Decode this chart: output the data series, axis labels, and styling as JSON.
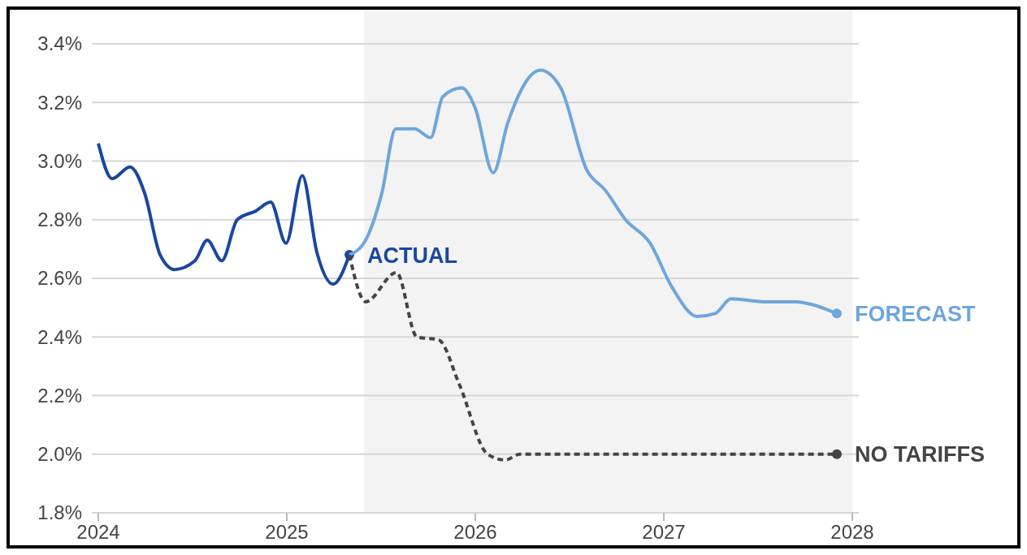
{
  "chart_data": {
    "type": "line",
    "xlim": [
      2024,
      2028
    ],
    "xticks": [
      2024,
      2025,
      2026,
      2027,
      2028
    ],
    "ylim": [
      1.8,
      3.4
    ],
    "yticks": [
      {
        "value": 1.8,
        "label": "1.8%"
      },
      {
        "value": 2.0,
        "label": "2.0%"
      },
      {
        "value": 2.2,
        "label": "2.2%"
      },
      {
        "value": 2.4,
        "label": "2.4%"
      },
      {
        "value": 2.6,
        "label": "2.6%"
      },
      {
        "value": 2.8,
        "label": "2.8%"
      },
      {
        "value": 3.0,
        "label": "3.0%"
      },
      {
        "value": 3.2,
        "label": "3.2%"
      },
      {
        "value": 3.4,
        "label": "3.4%"
      }
    ],
    "grid": "y",
    "marker": "none",
    "bands": [
      {
        "axis": "x",
        "from": 2025.41,
        "to": 2028,
        "color": "#f3f3f3"
      }
    ],
    "series": [
      {
        "name": "ACTUAL",
        "color": "#1a47a0",
        "line_style": "solid",
        "x": [
          2024.0,
          2024.073,
          2024.168,
          2024.246,
          2024.328,
          2024.405,
          2024.513,
          2024.578,
          2024.655,
          2024.737,
          2024.836,
          2024.914,
          2024.996,
          2025.082,
          2025.159,
          2025.246,
          2025.332
        ],
        "values": [
          3.06,
          2.94,
          2.98,
          2.89,
          2.68,
          2.63,
          2.66,
          2.73,
          2.66,
          2.8,
          2.83,
          2.86,
          2.72,
          2.95,
          2.69,
          2.58,
          2.68
        ]
      },
      {
        "name": "FORECAST",
        "color": "#6ea6dc",
        "line_style": "solid",
        "x": [
          2025.332,
          2025.418,
          2025.504,
          2025.578,
          2025.677,
          2025.763,
          2025.828,
          2025.927,
          2026.0,
          2026.095,
          2026.172,
          2026.345,
          2026.453,
          2026.591,
          2026.69,
          2026.797,
          2026.927,
          2027.043,
          2027.177,
          2027.272,
          2027.358,
          2027.53,
          2027.703,
          2027.789,
          2027.918
        ],
        "values": [
          2.68,
          2.73,
          2.89,
          3.11,
          3.11,
          3.08,
          3.22,
          3.25,
          3.18,
          2.96,
          3.13,
          3.31,
          3.25,
          2.97,
          2.9,
          2.8,
          2.72,
          2.57,
          2.47,
          2.48,
          2.53,
          2.52,
          2.52,
          2.51,
          2.48
        ]
      },
      {
        "name": "NO TARIFFS",
        "color": "#444444",
        "line_style": "dashed",
        "x": [
          2025.332,
          2025.418,
          2025.582,
          2025.69,
          2025.806,
          2025.914,
          2026.065,
          2026.159,
          2026.237,
          2027.918
        ],
        "values": [
          2.68,
          2.52,
          2.62,
          2.4,
          2.39,
          2.24,
          2.0,
          1.98,
          2.0,
          2.0
        ]
      }
    ]
  }
}
